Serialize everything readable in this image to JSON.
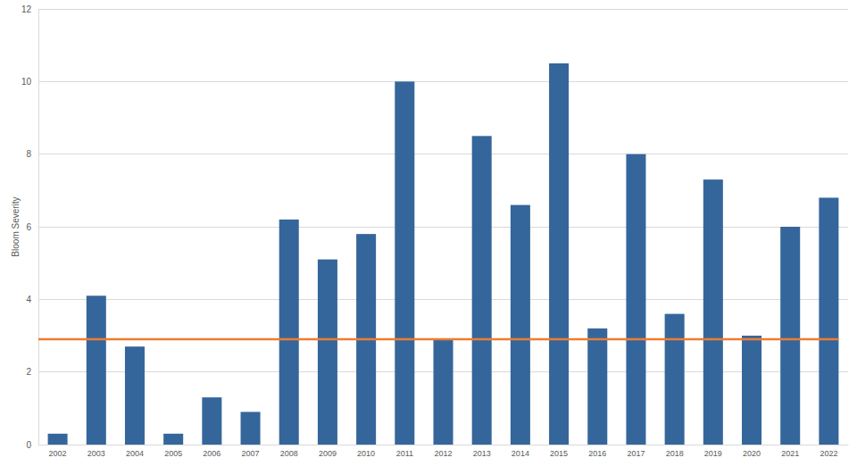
{
  "chart_data": {
    "type": "bar",
    "y_label": "Bloom Severity",
    "categories": [
      "2002",
      "2003",
      "2004",
      "2005",
      "2006",
      "2007",
      "2008",
      "2009",
      "2010",
      "2011",
      "2012",
      "2013",
      "2014",
      "2015",
      "2016",
      "2017",
      "2018",
      "2019",
      "2020",
      "2021",
      "2022"
    ],
    "values": [
      0.3,
      4.1,
      2.7,
      0.3,
      1.3,
      0.9,
      6.2,
      5.1,
      5.8,
      10.0,
      2.9,
      8.5,
      6.6,
      10.5,
      3.2,
      8.0,
      3.6,
      7.3,
      3.0,
      6.0,
      6.8
    ],
    "color": "#35669b",
    "reference_line": {
      "value": 2.9,
      "color": "#ed7d31"
    },
    "ylim": [
      0,
      12
    ],
    "yticks": [
      0,
      2,
      4,
      6,
      8,
      10,
      12
    ],
    "grid": true
  }
}
